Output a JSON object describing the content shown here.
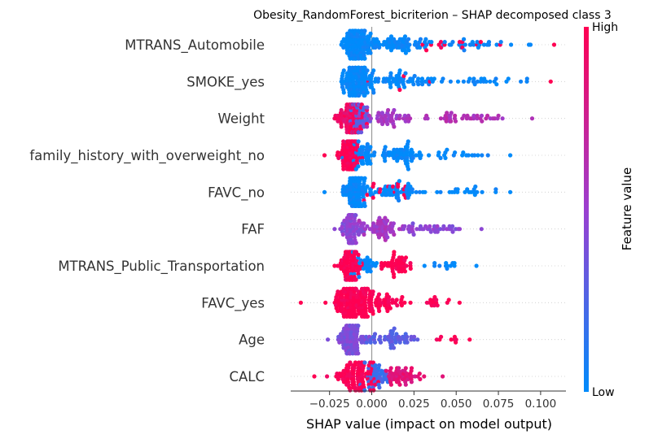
{
  "chart_data": {
    "type": "scatter",
    "subtype": "shap-beeswarm",
    "title": "Obesity_RandomForest_bicriterion – SHAP decomposed class 3",
    "xlabel": "SHAP value (impact on model output)",
    "ylabel": "",
    "xlim": [
      -0.048,
      0.115
    ],
    "xticks": [
      -0.025,
      0.0,
      0.025,
      0.05,
      0.075,
      0.1
    ],
    "xtick_labels": [
      "−0.025",
      "0.000",
      "0.025",
      "0.050",
      "0.075",
      "0.100"
    ],
    "grid": false,
    "zero_line": true,
    "colorbar": {
      "label": "Feature value",
      "high_label": "High",
      "low_label": "Low",
      "low_color": "#008bfb",
      "mid_color": "#9b3fd0",
      "high_color": "#ff0052"
    },
    "features": [
      {
        "name": "MTRANS_Automobile",
        "min": -0.018,
        "max": 0.108,
        "clusters": [
          {
            "center": -0.008,
            "spread": 0.009,
            "count": 120,
            "color": 0.0
          },
          {
            "center": 0.02,
            "spread": 0.015,
            "count": 55,
            "color": 0.0
          },
          {
            "center": 0.06,
            "spread": 0.022,
            "count": 28,
            "color": 0.0
          },
          {
            "center": 0.045,
            "spread": 0.025,
            "count": 14,
            "color": 1.0
          }
        ]
      },
      {
        "name": "SMOKE_yes",
        "min": -0.018,
        "max": 0.106,
        "clusters": [
          {
            "center": -0.008,
            "spread": 0.009,
            "count": 130,
            "color": 0.0
          },
          {
            "center": 0.02,
            "spread": 0.015,
            "count": 55,
            "color": 0.0
          },
          {
            "center": 0.065,
            "spread": 0.022,
            "count": 26,
            "color": 0.0
          },
          {
            "center": 0.02,
            "spread": 0.03,
            "count": 4,
            "color": 1.0
          }
        ]
      },
      {
        "name": "Weight",
        "min": -0.022,
        "max": 0.095,
        "clusters": [
          {
            "center": -0.012,
            "spread": 0.006,
            "count": 95,
            "color": 0.92
          },
          {
            "center": -0.008,
            "spread": 0.007,
            "count": 35,
            "color": 0.3
          },
          {
            "center": 0.01,
            "spread": 0.012,
            "count": 45,
            "color": 0.55
          },
          {
            "center": 0.055,
            "spread": 0.025,
            "count": 38,
            "color": 0.6
          }
        ]
      },
      {
        "name": "family_history_with_overweight_no",
        "min": -0.028,
        "max": 0.082,
        "clusters": [
          {
            "center": -0.013,
            "spread": 0.006,
            "count": 85,
            "color": 1.0
          },
          {
            "center": -0.005,
            "spread": 0.008,
            "count": 40,
            "color": 0.0
          },
          {
            "center": 0.018,
            "spread": 0.012,
            "count": 55,
            "color": 0.0
          },
          {
            "center": 0.055,
            "spread": 0.018,
            "count": 20,
            "color": 0.0
          }
        ]
      },
      {
        "name": "FAVC_no",
        "min": -0.028,
        "max": 0.082,
        "clusters": [
          {
            "center": -0.01,
            "spread": 0.006,
            "count": 110,
            "color": 0.0
          },
          {
            "center": 0.015,
            "spread": 0.012,
            "count": 50,
            "color": 0.0
          },
          {
            "center": 0.012,
            "spread": 0.014,
            "count": 16,
            "color": 1.0
          },
          {
            "center": 0.055,
            "spread": 0.018,
            "count": 20,
            "color": 0.0
          }
        ]
      },
      {
        "name": "FAF",
        "min": -0.022,
        "max": 0.065,
        "clusters": [
          {
            "center": -0.012,
            "spread": 0.005,
            "count": 90,
            "color": 0.45
          },
          {
            "center": 0.008,
            "spread": 0.012,
            "count": 60,
            "color": 0.55
          },
          {
            "center": 0.032,
            "spread": 0.014,
            "count": 35,
            "color": 0.45
          }
        ]
      },
      {
        "name": "MTRANS_Public_Transportation",
        "min": -0.022,
        "max": 0.062,
        "clusters": [
          {
            "center": -0.013,
            "spread": 0.005,
            "count": 100,
            "color": 1.0
          },
          {
            "center": 0.015,
            "spread": 0.01,
            "count": 45,
            "color": 1.0
          },
          {
            "center": -0.005,
            "spread": 0.008,
            "count": 25,
            "color": 0.0
          },
          {
            "center": 0.045,
            "spread": 0.012,
            "count": 12,
            "color": 0.0
          }
        ]
      },
      {
        "name": "FAVC_yes",
        "min": -0.042,
        "max": 0.052,
        "clusters": [
          {
            "center": -0.012,
            "spread": 0.01,
            "count": 150,
            "color": 1.0
          },
          {
            "center": 0.005,
            "spread": 0.01,
            "count": 55,
            "color": 1.0
          },
          {
            "center": 0.035,
            "spread": 0.01,
            "count": 14,
            "color": 1.0
          }
        ]
      },
      {
        "name": "Age",
        "min": -0.026,
        "max": 0.058,
        "clusters": [
          {
            "center": -0.012,
            "spread": 0.006,
            "count": 95,
            "color": 0.4
          },
          {
            "center": 0.01,
            "spread": 0.012,
            "count": 55,
            "color": 0.3
          },
          {
            "center": 0.045,
            "spread": 0.01,
            "count": 8,
            "color": 1.0
          }
        ]
      },
      {
        "name": "CALC",
        "min": -0.034,
        "max": 0.042,
        "clusters": [
          {
            "center": -0.01,
            "spread": 0.01,
            "count": 110,
            "color": 1.0
          },
          {
            "center": 0.002,
            "spread": 0.006,
            "count": 40,
            "color": 0.2
          },
          {
            "center": 0.02,
            "spread": 0.01,
            "count": 50,
            "color": 0.85
          }
        ]
      }
    ]
  }
}
